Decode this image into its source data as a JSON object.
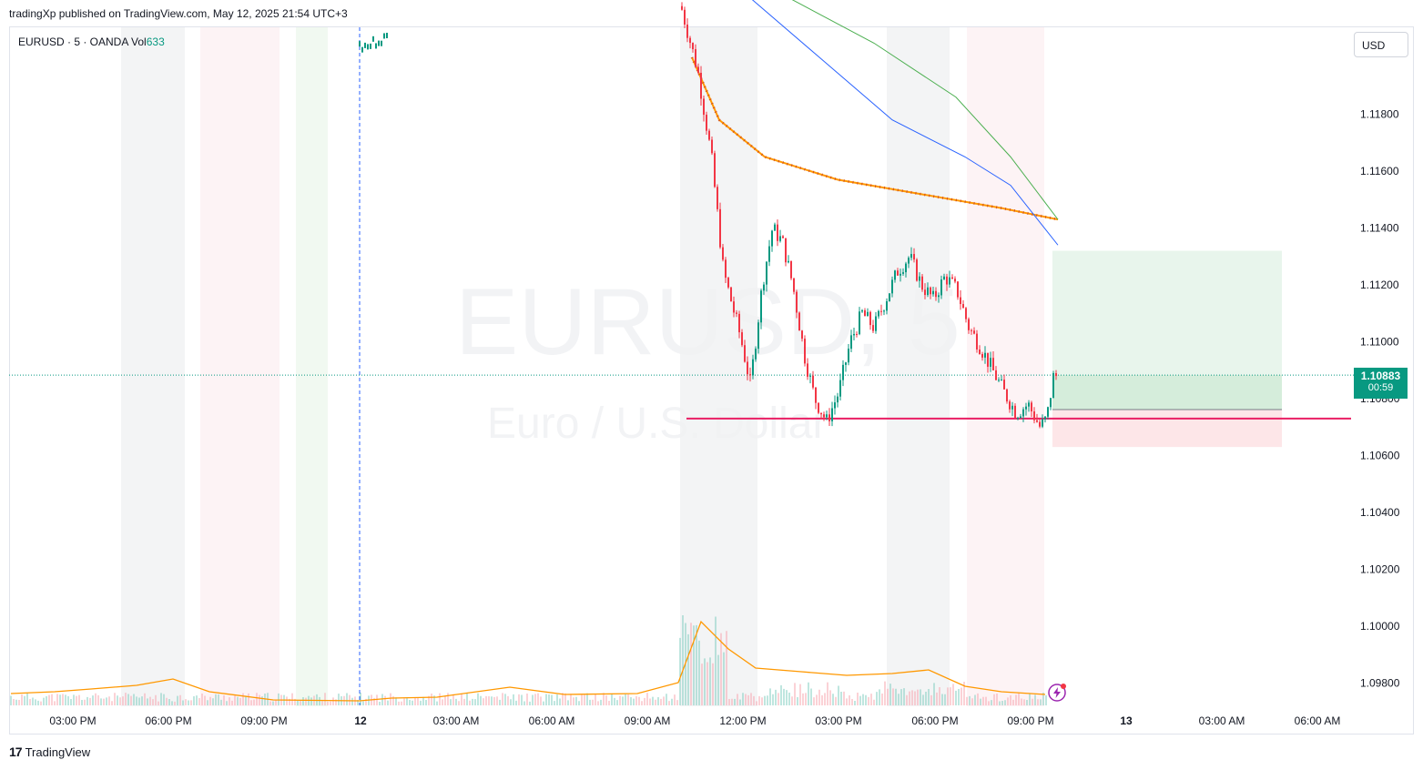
{
  "header": {
    "publish_line": "tradingXp published on TradingView.com, May 12, 2025 21:54 UTC+3"
  },
  "legend": {
    "symbol": "EURUSD · 5 · OANDA",
    "vol_label": "Vol",
    "vol_value": "633"
  },
  "currency_button": "USD",
  "watermark": {
    "line1": "EURUSD, 5",
    "line2": "Euro / U.S. Dollar"
  },
  "price_tag": {
    "price": "1.10883",
    "countdown": "00:59"
  },
  "footer": {
    "brand": "TradingView",
    "logo_glyph": "17"
  },
  "colors": {
    "up": "#089981",
    "down": "#f23645",
    "hline": "#e91e63",
    "ma1": "#2962ff",
    "ma2": "#4caf50",
    "ma3": "#ff9800",
    "volume_ma": "#ff9800"
  },
  "chart_data": {
    "type": "candlestick",
    "symbol": "EURUSD",
    "interval": "5",
    "y_axis": {
      "ticks": [
        "1.11800",
        "1.11600",
        "1.11400",
        "1.11200",
        "1.11000",
        "1.10800",
        "1.10600",
        "1.10400",
        "1.10200",
        "1.10000",
        "1.09800"
      ]
    },
    "x_axis": {
      "ticks": [
        "03:00 PM",
        "06:00 PM",
        "09:00 PM",
        "12",
        "03:00 AM",
        "06:00 AM",
        "09:00 AM",
        "12:00 PM",
        "03:00 PM",
        "06:00 PM",
        "09:00 PM",
        "13",
        "03:00 AM",
        "06:00 AM"
      ]
    },
    "last_price": 1.10883,
    "horizontal_line": 1.1073,
    "position": {
      "entry": 1.1076,
      "target": 1.1132,
      "stop": 1.1063
    },
    "price_path": [
      [
        0,
        1.1218
      ],
      [
        1,
        1.1195
      ],
      [
        1.8,
        1.1165
      ],
      [
        2.5,
        1.1125
      ],
      [
        3.5,
        1.1102
      ],
      [
        4.1,
        1.1085
      ],
      [
        4.8,
        1.112
      ],
      [
        5.4,
        1.114
      ],
      [
        6.0,
        1.1135
      ],
      [
        6.6,
        1.112
      ],
      [
        7.3,
        1.1095
      ],
      [
        7.9,
        1.108
      ],
      [
        8.6,
        1.1072
      ],
      [
        9.3,
        1.1082
      ],
      [
        10.0,
        1.11
      ],
      [
        10.7,
        1.111
      ],
      [
        11.4,
        1.1105
      ],
      [
        12.1,
        1.1115
      ],
      [
        12.8,
        1.1125
      ],
      [
        13.5,
        1.113
      ],
      [
        14.2,
        1.112
      ],
      [
        14.9,
        1.1115
      ],
      [
        15.6,
        1.1123
      ],
      [
        16.3,
        1.1118
      ],
      [
        17.0,
        1.1105
      ],
      [
        17.7,
        1.1098
      ],
      [
        18.4,
        1.109
      ],
      [
        19.1,
        1.1082
      ],
      [
        19.8,
        1.1075
      ],
      [
        20.5,
        1.1078
      ],
      [
        21.2,
        1.107
      ],
      [
        21.6,
        1.1073
      ],
      [
        22.0,
        1.1088
      ]
    ],
    "moving_averages": [
      {
        "values": [
          1.12,
          1.1178,
          1.1165,
          1.1157,
          1.1152,
          1.1147,
          1.1143
        ],
        "marker": "cross"
      },
      {
        "values": [
          1.1222,
          1.12,
          1.1178,
          1.1165,
          1.1155,
          1.1134
        ],
        "marker": "line"
      },
      {
        "values": [
          1.1222,
          1.1205,
          1.1186,
          1.1165,
          1.1143
        ],
        "marker": "line"
      }
    ],
    "sessions": [
      "asia",
      "london",
      "newyork"
    ]
  }
}
